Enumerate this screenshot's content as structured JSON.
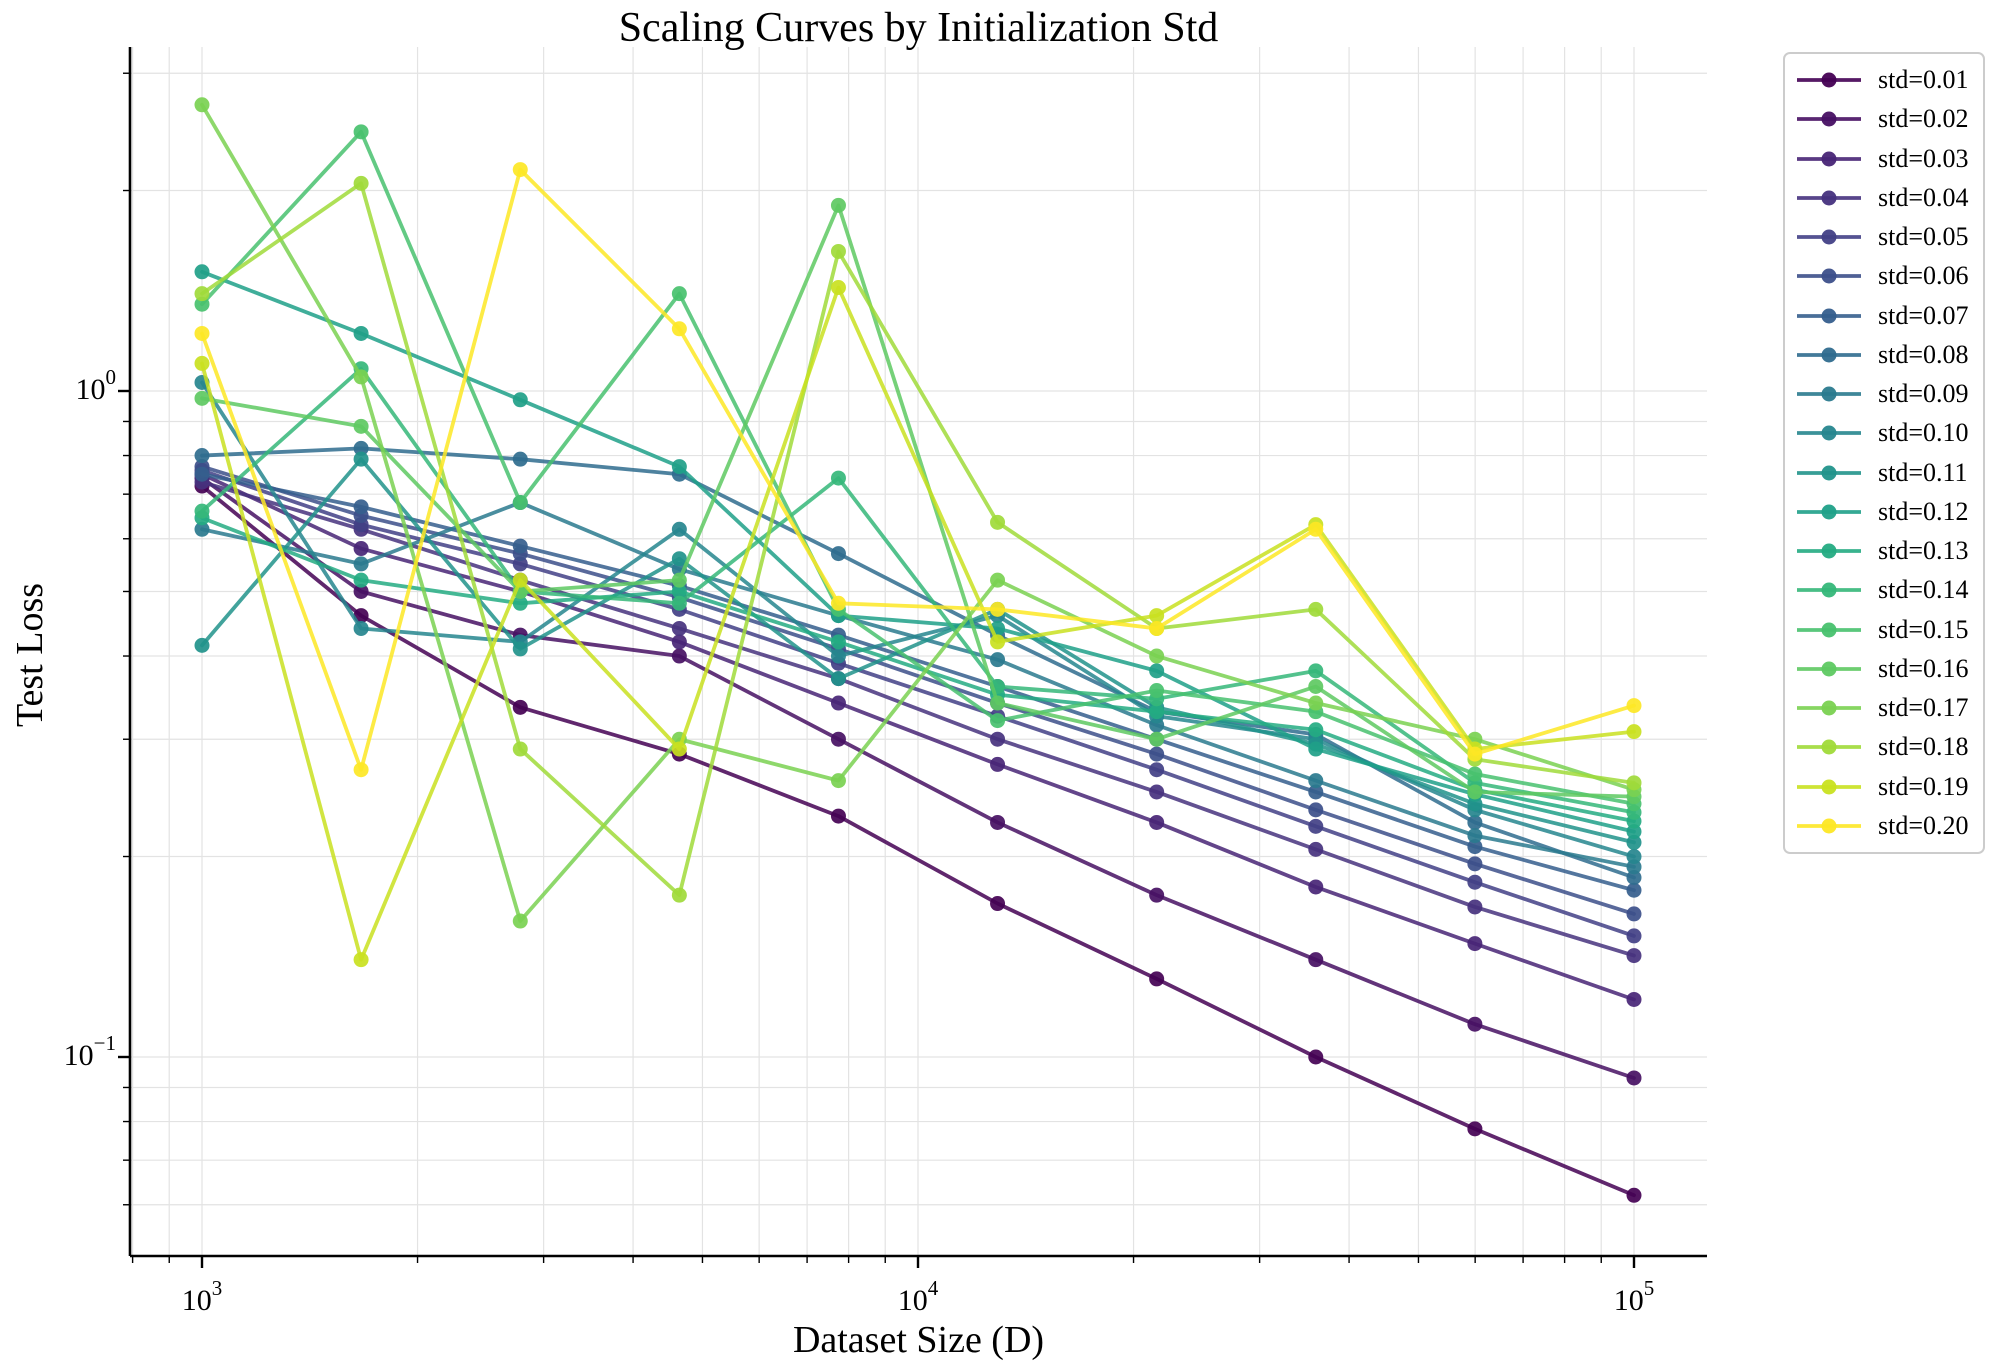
{
  "figure": {
    "title": "Scaling Curves by Initialization Std",
    "xlabel": "Dataset Size (D)",
    "ylabel": "Test Loss"
  },
  "style": {
    "background": "#ffffff",
    "spine_color": "#000000",
    "grid_color": "#e3e3e3",
    "legend_border_color": "#cccccc",
    "line_opacity": 0.85,
    "marker_opacity": 0.92
  },
  "chart_data": {
    "type": "line",
    "title": "Scaling Curves by Initialization Std",
    "xlabel": "Dataset Size (D)",
    "ylabel": "Test Loss",
    "x_scale": "log",
    "y_scale": "log",
    "grid": "both",
    "legend_position": "outside-right",
    "x_range": [
      793,
      126500
    ],
    "y_range": [
      0.0503,
      3.29
    ],
    "x_tick_exponents": [
      3,
      4,
      5
    ],
    "y_tick_exponents": [
      0,
      -1
    ],
    "x": [
      1000,
      1668,
      2783,
      4642,
      7743,
      12915,
      21544,
      35938,
      59948,
      100000
    ],
    "series": [
      {
        "label": "std=0.01",
        "color": "#440154",
        "values": [
          0.72,
          0.46,
          0.335,
          0.285,
          0.23,
          0.17,
          0.131,
          0.1,
          0.078,
          0.062
        ]
      },
      {
        "label": "std=0.02",
        "color": "#471063",
        "values": [
          0.74,
          0.5,
          0.43,
          0.4,
          0.3,
          0.225,
          0.175,
          0.14,
          0.112,
          0.093
        ]
      },
      {
        "label": "std=0.03",
        "color": "#482576",
        "values": [
          0.75,
          0.58,
          0.5,
          0.42,
          0.34,
          0.275,
          0.225,
          0.18,
          0.148,
          0.122
        ]
      },
      {
        "label": "std=0.04",
        "color": "#46327e",
        "values": [
          0.73,
          0.62,
          0.52,
          0.44,
          0.37,
          0.3,
          0.25,
          0.205,
          0.168,
          0.142
        ]
      },
      {
        "label": "std=0.05",
        "color": "#424086",
        "values": [
          0.76,
          0.63,
          0.55,
          0.47,
          0.39,
          0.325,
          0.27,
          0.222,
          0.183,
          0.152
        ]
      },
      {
        "label": "std=0.06",
        "color": "#3c4f8a",
        "values": [
          0.77,
          0.65,
          0.57,
          0.49,
          0.41,
          0.34,
          0.285,
          0.235,
          0.195,
          0.164
        ]
      },
      {
        "label": "std=0.07",
        "color": "#355e8d",
        "values": [
          0.75,
          0.67,
          0.585,
          0.51,
          0.43,
          0.36,
          0.3,
          0.25,
          0.207,
          0.178
        ]
      },
      {
        "label": "std=0.08",
        "color": "#2f6c8e",
        "values": [
          0.8,
          0.82,
          0.79,
          0.75,
          0.57,
          0.43,
          0.33,
          0.305,
          0.225,
          0.186
        ]
      },
      {
        "label": "std=0.09",
        "color": "#2a7a8e",
        "values": [
          0.62,
          0.55,
          0.68,
          0.54,
          0.46,
          0.395,
          0.315,
          0.26,
          0.215,
          0.193
        ]
      },
      {
        "label": "std=0.10",
        "color": "#26868e",
        "values": [
          1.03,
          0.44,
          0.42,
          0.62,
          0.4,
          0.46,
          0.325,
          0.3,
          0.235,
          0.2
        ]
      },
      {
        "label": "std=0.11",
        "color": "#21938b",
        "values": [
          0.415,
          0.79,
          0.41,
          0.56,
          0.37,
          0.47,
          0.335,
          0.295,
          0.24,
          0.21
        ]
      },
      {
        "label": "std=0.12",
        "color": "#1fa088",
        "values": [
          1.51,
          1.22,
          0.97,
          0.77,
          0.46,
          0.44,
          0.38,
          0.29,
          0.248,
          0.218
        ]
      },
      {
        "label": "std=0.13",
        "color": "#24ab82",
        "values": [
          0.645,
          0.52,
          0.48,
          0.5,
          0.42,
          0.35,
          0.33,
          0.31,
          0.252,
          0.226
        ]
      },
      {
        "label": "std=0.14",
        "color": "#35b779",
        "values": [
          0.66,
          1.08,
          0.5,
          0.48,
          0.74,
          0.36,
          0.345,
          0.38,
          0.258,
          0.233
        ]
      },
      {
        "label": "std=0.15",
        "color": "#48c16e",
        "values": [
          1.35,
          2.45,
          0.68,
          1.4,
          0.47,
          0.32,
          0.355,
          0.33,
          0.266,
          0.24
        ]
      },
      {
        "label": "std=0.16",
        "color": "#5ec962",
        "values": [
          0.975,
          0.885,
          0.5,
          0.52,
          1.9,
          0.34,
          0.3,
          0.36,
          0.25,
          0.246
        ]
      },
      {
        "label": "std=0.17",
        "color": "#7ad151",
        "values": [
          2.69,
          1.05,
          0.16,
          0.3,
          0.26,
          0.52,
          0.4,
          0.34,
          0.3,
          0.252
        ]
      },
      {
        "label": "std=0.18",
        "color": "#a0da39",
        "values": [
          1.4,
          2.05,
          0.29,
          0.175,
          1.62,
          0.635,
          0.44,
          0.47,
          0.28,
          0.258
        ]
      },
      {
        "label": "std=0.19",
        "color": "#c9e120",
        "values": [
          1.1,
          0.14,
          0.52,
          0.29,
          1.43,
          0.42,
          0.46,
          0.63,
          0.29,
          0.308
        ]
      },
      {
        "label": "std=0.20",
        "color": "#fde725",
        "values": [
          1.22,
          0.27,
          2.15,
          1.24,
          0.48,
          0.47,
          0.44,
          0.62,
          0.285,
          0.337
        ]
      }
    ]
  }
}
